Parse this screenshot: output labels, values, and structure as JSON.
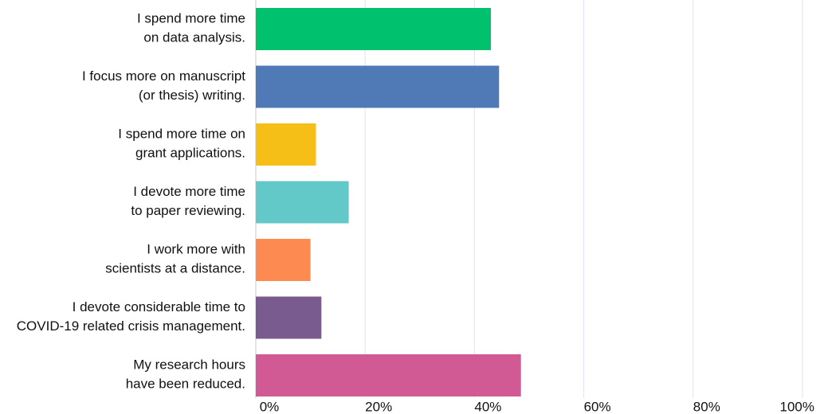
{
  "chart_data": {
    "type": "hbar",
    "categories": [
      [
        "I spend more time",
        "on data analysis."
      ],
      [
        "I focus more on manuscript",
        "(or thesis) writing."
      ],
      [
        "I spend more time on",
        "grant applications."
      ],
      [
        "I devote more time",
        "to paper reviewing."
      ],
      [
        "I work more with",
        "scientists at a distance."
      ],
      [
        "I devote considerable time to",
        "COVID-19 related crisis management."
      ],
      [
        "My research hours",
        "have been reduced."
      ]
    ],
    "values": [
      43,
      44.5,
      11,
      17,
      10,
      12,
      48.5
    ],
    "colors": [
      "#00c16e",
      "#4f7ab5",
      "#f5bf18",
      "#63c8c8",
      "#fd8a50",
      "#7a5b8f",
      "#d15a95"
    ],
    "xlim": [
      0,
      100
    ],
    "xticks": [
      {
        "value": 0,
        "label": "0%"
      },
      {
        "value": 20,
        "label": "20%"
      },
      {
        "value": 40,
        "label": "40%"
      },
      {
        "value": 60,
        "label": "60%"
      },
      {
        "value": 80,
        "label": "80%"
      },
      {
        "value": 100,
        "label": "100%"
      }
    ],
    "grid": true
  }
}
